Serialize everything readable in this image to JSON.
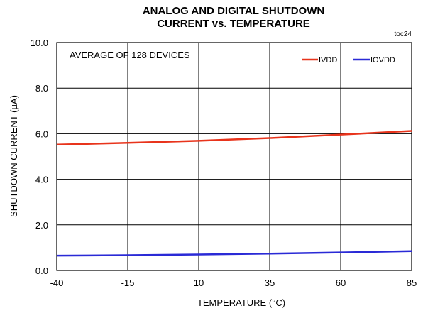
{
  "chart_data": {
    "type": "line",
    "title_line1": "ANALOG AND DIGITAL SHUTDOWN",
    "title_line2": "CURRENT vs. TEMPERATURE",
    "figure_id": "toc24",
    "annotation": "AVERAGE OF 128 DEVICES",
    "xlabel": "TEMPERATURE (°C)",
    "ylabel": "SHUTDOWN CURRENT (µA)",
    "xlim": [
      -40,
      85
    ],
    "ylim": [
      0,
      10
    ],
    "x_ticks": [
      -40,
      -15,
      10,
      35,
      60,
      85
    ],
    "x_tick_labels": [
      "-40",
      "-15",
      "10",
      "35",
      "60",
      "85"
    ],
    "y_ticks": [
      0,
      2,
      4,
      6,
      8,
      10
    ],
    "y_tick_labels": [
      "0.0",
      "2.0",
      "4.0",
      "6.0",
      "8.0",
      "10.0"
    ],
    "grid": true,
    "legend_position": "top-right",
    "x": [
      -40,
      -15,
      10,
      35,
      60,
      85
    ],
    "series": [
      {
        "name": "IVDD",
        "color": "#e8341c",
        "values": [
          5.52,
          5.6,
          5.69,
          5.81,
          5.96,
          6.12
        ]
      },
      {
        "name": "IOVDD",
        "color": "#2a2ad6",
        "values": [
          0.65,
          0.67,
          0.7,
          0.74,
          0.79,
          0.85
        ]
      }
    ]
  }
}
